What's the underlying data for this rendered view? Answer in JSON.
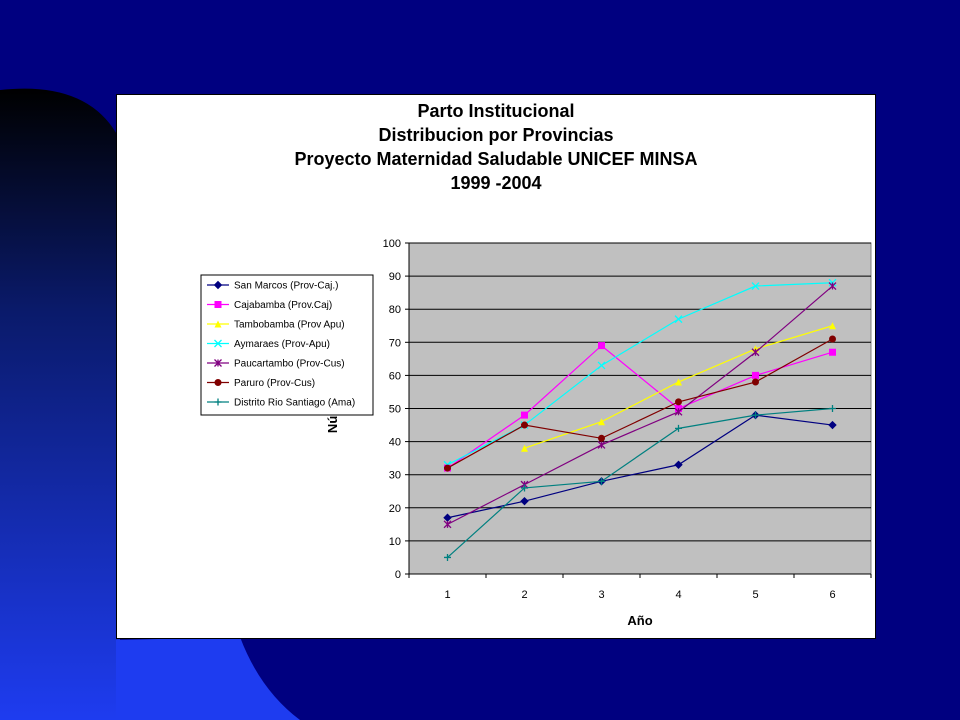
{
  "colors": {
    "slide_bg": "#000080",
    "plot_area": "#c0c0c0",
    "gridline": "#000000"
  },
  "chart_data": {
    "type": "line",
    "title_lines": [
      "Parto Institucional",
      "Distribucion por Provincias",
      "Proyecto Maternidad Saludable UNICEF MINSA",
      "1999 -2004"
    ],
    "xlabel": "Año",
    "ylabel": "Número",
    "x": [
      1,
      2,
      3,
      4,
      5,
      6
    ],
    "ylim": [
      0,
      100
    ],
    "yticks": [
      0,
      10,
      20,
      30,
      40,
      50,
      60,
      70,
      80,
      90,
      100
    ],
    "grid": true,
    "legend_position": "left",
    "series": [
      {
        "name": "San Marcos (Prov-Caj.)",
        "color": "#000080",
        "marker": "diamond",
        "values": [
          17,
          22,
          28,
          33,
          48,
          45
        ]
      },
      {
        "name": "Cajabamba (Prov.Caj)",
        "color": "#ff00ff",
        "marker": "square",
        "values": [
          32,
          48,
          69,
          50,
          60,
          67
        ]
      },
      {
        "name": "Tambobamba (Prov Apu)",
        "color": "#ffff00",
        "marker": "triangle",
        "values": [
          null,
          38,
          46,
          58,
          68,
          75
        ]
      },
      {
        "name": "Aymaraes (Prov-Apu)",
        "color": "#00ffff",
        "marker": "x",
        "values": [
          33,
          45,
          63,
          77,
          87,
          88
        ]
      },
      {
        "name": "Paucartambo (Prov-Cus)",
        "color": "#800080",
        "marker": "star",
        "values": [
          15,
          27,
          39,
          49,
          67,
          87
        ]
      },
      {
        "name": "Paruro (Prov-Cus)",
        "color": "#800000",
        "marker": "circle",
        "values": [
          32,
          45,
          41,
          52,
          58,
          71
        ]
      },
      {
        "name": "Distrito Rio Santiago (Ama)",
        "color": "#008080",
        "marker": "plus",
        "values": [
          5,
          26,
          28,
          44,
          48,
          50
        ]
      }
    ]
  }
}
